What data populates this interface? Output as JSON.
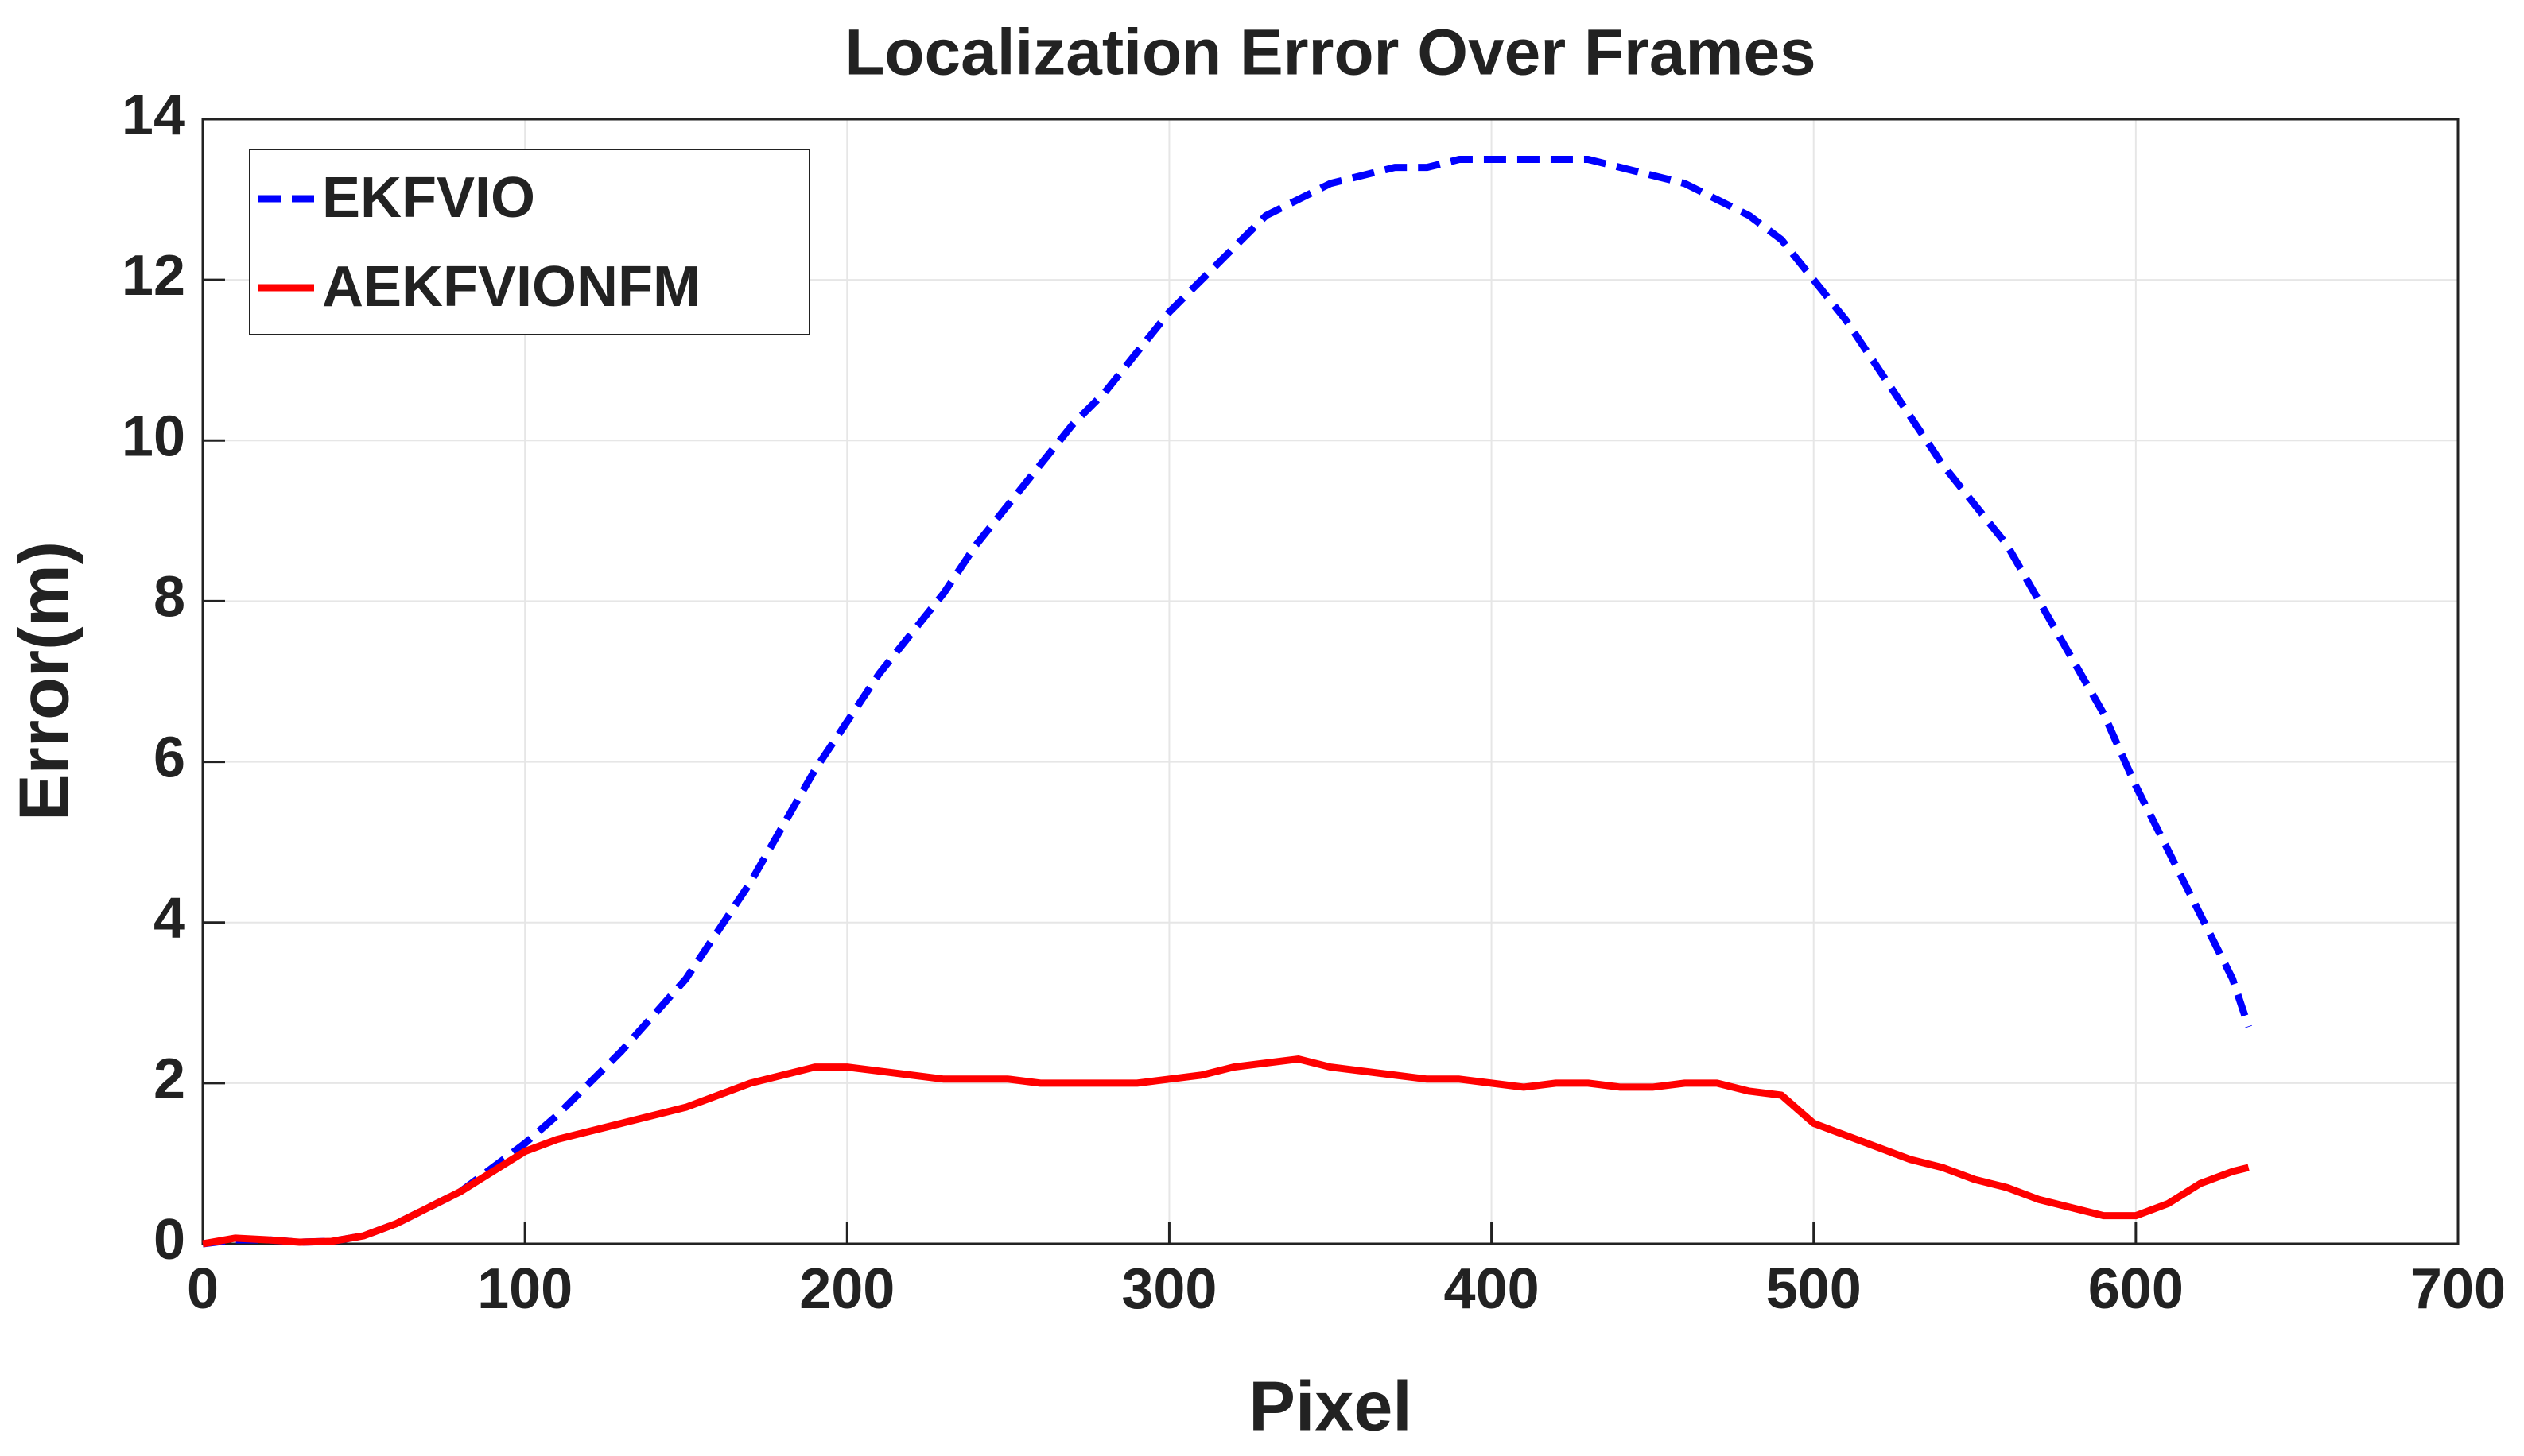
{
  "chart_data": {
    "type": "line",
    "title": "Localization Error Over Frames",
    "xlabel": "Pixel",
    "ylabel": "Error(m)",
    "x": [
      0,
      10,
      20,
      30,
      40,
      50,
      60,
      70,
      80,
      90,
      100,
      110,
      120,
      130,
      140,
      150,
      160,
      170,
      180,
      190,
      200,
      210,
      220,
      230,
      240,
      250,
      260,
      270,
      280,
      290,
      300,
      310,
      320,
      330,
      340,
      350,
      360,
      370,
      380,
      390,
      400,
      410,
      420,
      430,
      440,
      450,
      460,
      470,
      480,
      490,
      500,
      510,
      520,
      530,
      540,
      550,
      560,
      570,
      580,
      590,
      600,
      610,
      620,
      630,
      635
    ],
    "series": [
      {
        "name": "EKFVIO",
        "color": "#0000ff",
        "line_style": "dashed",
        "values": [
          0,
          0.05,
          0.05,
          0.02,
          0.03,
          0.1,
          0.25,
          0.45,
          0.65,
          0.95,
          1.25,
          1.6,
          2.0,
          2.4,
          2.85,
          3.3,
          3.9,
          4.5,
          5.2,
          5.9,
          6.5,
          7.1,
          7.6,
          8.1,
          8.7,
          9.2,
          9.7,
          10.2,
          10.6,
          11.1,
          11.6,
          12.0,
          12.4,
          12.8,
          13.0,
          13.2,
          13.3,
          13.4,
          13.4,
          13.5,
          13.5,
          13.5,
          13.5,
          13.5,
          13.4,
          13.3,
          13.2,
          13.0,
          12.8,
          12.5,
          12.0,
          11.5,
          10.9,
          10.3,
          9.7,
          9.2,
          8.7,
          8.0,
          7.3,
          6.6,
          5.7,
          4.9,
          4.1,
          3.3,
          2.7
        ]
      },
      {
        "name": "AEKFVIONFM",
        "color": "#ff0000",
        "line_style": "solid",
        "values": [
          0,
          0.07,
          0.05,
          0.02,
          0.03,
          0.1,
          0.25,
          0.45,
          0.65,
          0.9,
          1.15,
          1.3,
          1.4,
          1.5,
          1.6,
          1.7,
          1.85,
          2.0,
          2.1,
          2.2,
          2.2,
          2.15,
          2.1,
          2.05,
          2.05,
          2.05,
          2.0,
          2.0,
          2.0,
          2.0,
          2.05,
          2.1,
          2.2,
          2.25,
          2.3,
          2.2,
          2.15,
          2.1,
          2.05,
          2.05,
          2.0,
          1.95,
          2.0,
          2.0,
          1.95,
          1.95,
          2.0,
          2.0,
          1.9,
          1.85,
          1.5,
          1.35,
          1.2,
          1.05,
          0.95,
          0.8,
          0.7,
          0.55,
          0.45,
          0.35,
          0.35,
          0.5,
          0.75,
          0.9,
          0.95
        ]
      }
    ],
    "xlim": [
      0,
      700
    ],
    "xticks": [
      0,
      100,
      200,
      300,
      400,
      500,
      600,
      700
    ],
    "ylim": [
      0,
      14
    ],
    "yticks": [
      0,
      2,
      4,
      6,
      8,
      10,
      12,
      14
    ],
    "grid": true,
    "legend_position": "upper-left"
  }
}
